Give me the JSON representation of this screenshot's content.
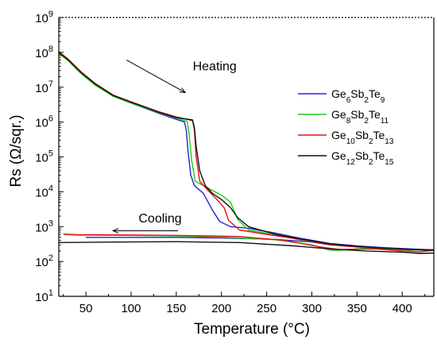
{
  "chart_data": {
    "type": "line",
    "xlabel": "Temperature (°C)",
    "ylabel": "Rs (Ω/sqr.)",
    "xlim": [
      20,
      435
    ],
    "ylim": [
      10,
      1000000000
    ],
    "y_scale": "log",
    "x_ticks": [
      50,
      100,
      150,
      200,
      250,
      300,
      350,
      400
    ],
    "x_tick_labels": [
      "50",
      "100",
      "150",
      "200",
      "250",
      "300",
      "350",
      "400"
    ],
    "y_ticks": [
      {
        "value": 10,
        "base": "10",
        "exp": "1"
      },
      {
        "value": 100,
        "base": "10",
        "exp": "2"
      },
      {
        "value": 1000,
        "base": "10",
        "exp": "3"
      },
      {
        "value": 10000,
        "base": "10",
        "exp": "4"
      },
      {
        "value": 100000,
        "base": "10",
        "exp": "5"
      },
      {
        "value": 1000000,
        "base": "10",
        "exp": "6"
      },
      {
        "value": 10000000,
        "base": "10",
        "exp": "7"
      },
      {
        "value": 100000000,
        "base": "10",
        "exp": "8"
      },
      {
        "value": 1000000000,
        "base": "10",
        "exp": "9"
      }
    ],
    "grid": false,
    "legend_position": "right",
    "annotations": [
      {
        "text": "Heating",
        "x": 170,
        "y": 40000000,
        "arrow_from": [
          95,
          60000000
        ],
        "arrow_to": [
          160,
          7000000
        ]
      },
      {
        "text": "Cooling",
        "x": 110,
        "y": 1700,
        "arrow_from": [
          152,
          760
        ],
        "arrow_to": [
          80,
          760
        ]
      }
    ],
    "series": [
      {
        "name": "Ge6Sb2Te9",
        "label_parts": [
          [
            "Ge",
            ""
          ],
          [
            "6",
            "sub"
          ],
          [
            "Sb",
            ""
          ],
          [
            "2",
            "sub"
          ],
          [
            "Te",
            ""
          ],
          [
            "9",
            "sub"
          ]
        ],
        "color": "#2323d6",
        "heating": [
          [
            20,
            100000000
          ],
          [
            30,
            60000000
          ],
          [
            45,
            25000000
          ],
          [
            60,
            12000000
          ],
          [
            80,
            5500000
          ],
          [
            100,
            3500000
          ],
          [
            130,
            1800000
          ],
          [
            150,
            1200000
          ],
          [
            159,
            1000000
          ],
          [
            161,
            600000
          ],
          [
            163,
            150000
          ],
          [
            166,
            30000
          ],
          [
            170,
            15000
          ],
          [
            180,
            9000
          ],
          [
            190,
            3000
          ],
          [
            198,
            1400
          ],
          [
            210,
            1000
          ],
          [
            230,
            900
          ],
          [
            260,
            650
          ],
          [
            290,
            450
          ],
          [
            320,
            330
          ],
          [
            350,
            280
          ],
          [
            380,
            250
          ],
          [
            410,
            230
          ],
          [
            435,
            215
          ]
        ],
        "cooling": [
          [
            435,
            215
          ],
          [
            400,
            225
          ],
          [
            360,
            260
          ],
          [
            320,
            300
          ],
          [
            300,
            360
          ],
          [
            260,
            430
          ],
          [
            200,
            470
          ],
          [
            150,
            490
          ],
          [
            100,
            490
          ],
          [
            50,
            490
          ]
        ]
      },
      {
        "name": "Ge8Sb2Te11",
        "label_parts": [
          [
            "Ge",
            ""
          ],
          [
            "8",
            "sub"
          ],
          [
            "Sb",
            ""
          ],
          [
            "2",
            "sub"
          ],
          [
            "Te",
            ""
          ],
          [
            "11",
            "sub"
          ]
        ],
        "color": "#1ad01a",
        "heating": [
          [
            20,
            95000000
          ],
          [
            30,
            58000000
          ],
          [
            45,
            24000000
          ],
          [
            60,
            11500000
          ],
          [
            80,
            5500000
          ],
          [
            100,
            3500000
          ],
          [
            130,
            1900000
          ],
          [
            150,
            1300000
          ],
          [
            162,
            1050000
          ],
          [
            164,
            500000
          ],
          [
            167,
            80000
          ],
          [
            171,
            20000
          ],
          [
            180,
            15000
          ],
          [
            190,
            11000
          ],
          [
            200,
            8000
          ],
          [
            210,
            5000
          ],
          [
            218,
            1600
          ],
          [
            230,
            800
          ],
          [
            260,
            580
          ],
          [
            290,
            400
          ],
          [
            320,
            310
          ],
          [
            350,
            270
          ],
          [
            380,
            240
          ],
          [
            410,
            220
          ],
          [
            435,
            210
          ]
        ],
        "cooling": [
          [
            435,
            210
          ],
          [
            400,
            215
          ],
          [
            360,
            240
          ],
          [
            330,
            210
          ],
          [
            320,
            210
          ],
          [
            300,
            300
          ],
          [
            260,
            420
          ],
          [
            200,
            500
          ],
          [
            150,
            540
          ],
          [
            100,
            560
          ],
          [
            40,
            570
          ],
          [
            25,
            600
          ]
        ]
      },
      {
        "name": "Ge10Sb2Te13",
        "label_parts": [
          [
            "Ge",
            ""
          ],
          [
            "10",
            "sub"
          ],
          [
            "Sb",
            ""
          ],
          [
            "2",
            "sub"
          ],
          [
            "Te",
            ""
          ],
          [
            "13",
            "sub"
          ]
        ],
        "color": "#e81010",
        "heating": [
          [
            20,
            105000000
          ],
          [
            30,
            65000000
          ],
          [
            45,
            27000000
          ],
          [
            60,
            13000000
          ],
          [
            80,
            6000000
          ],
          [
            100,
            3800000
          ],
          [
            130,
            2000000
          ],
          [
            150,
            1400000
          ],
          [
            168,
            1100000
          ],
          [
            170,
            600000
          ],
          [
            172,
            100000
          ],
          [
            176,
            20000
          ],
          [
            185,
            11000
          ],
          [
            195,
            6000
          ],
          [
            203,
            3500
          ],
          [
            208,
            1500
          ],
          [
            220,
            800
          ],
          [
            250,
            600
          ],
          [
            290,
            420
          ],
          [
            320,
            300
          ],
          [
            350,
            260
          ],
          [
            380,
            240
          ],
          [
            410,
            220
          ],
          [
            435,
            210
          ]
        ],
        "cooling": [
          [
            435,
            210
          ],
          [
            420,
            190
          ],
          [
            400,
            200
          ],
          [
            370,
            230
          ],
          [
            330,
            220
          ],
          [
            310,
            260
          ],
          [
            270,
            400
          ],
          [
            220,
            520
          ],
          [
            150,
            560
          ],
          [
            80,
            580
          ],
          [
            40,
            590
          ],
          [
            25,
            610
          ]
        ]
      },
      {
        "name": "Ge12Sb2Te15",
        "label_parts": [
          [
            "Ge",
            ""
          ],
          [
            "12",
            "sub"
          ],
          [
            "Sb",
            ""
          ],
          [
            "2",
            "sub"
          ],
          [
            "Te",
            ""
          ],
          [
            "15",
            "sub"
          ]
        ],
        "color": "#111111",
        "heating": [
          [
            20,
            98000000
          ],
          [
            30,
            62000000
          ],
          [
            45,
            26000000
          ],
          [
            60,
            12500000
          ],
          [
            80,
            5800000
          ],
          [
            100,
            3700000
          ],
          [
            130,
            1950000
          ],
          [
            150,
            1350000
          ],
          [
            168,
            1150000
          ],
          [
            170,
            700000
          ],
          [
            172,
            200000
          ],
          [
            176,
            40000
          ],
          [
            182,
            15000
          ],
          [
            190,
            9000
          ],
          [
            200,
            6000
          ],
          [
            210,
            3500
          ],
          [
            218,
            1800
          ],
          [
            230,
            1000
          ],
          [
            260,
            600
          ],
          [
            290,
            430
          ],
          [
            320,
            320
          ],
          [
            350,
            270
          ],
          [
            380,
            240
          ],
          [
            410,
            220
          ],
          [
            435,
            210
          ]
        ],
        "cooling": [
          [
            435,
            175
          ],
          [
            420,
            170
          ],
          [
            400,
            185
          ],
          [
            360,
            200
          ],
          [
            320,
            230
          ],
          [
            280,
            280
          ],
          [
            220,
            350
          ],
          [
            150,
            370
          ],
          [
            80,
            360
          ],
          [
            20,
            350
          ]
        ]
      }
    ]
  }
}
